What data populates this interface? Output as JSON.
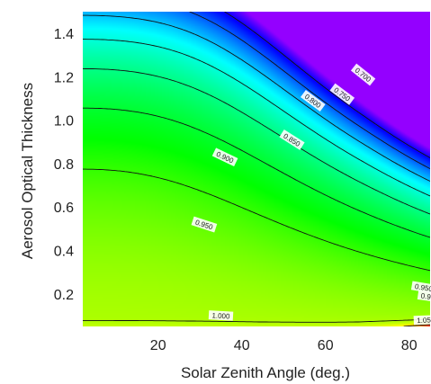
{
  "chart_data": {
    "type": "heatmap",
    "title": "",
    "xlabel": "Solar  Zenith  Angle  (deg.)",
    "ylabel": "Aerosol Optical Thickness",
    "xlim": [
      2,
      85
    ],
    "ylim": [
      0.05,
      1.5
    ],
    "x_ticks": [
      20,
      40,
      60,
      80
    ],
    "y_ticks": [
      0.2,
      0.4,
      0.6,
      0.8,
      1.0,
      1.2,
      1.4
    ],
    "x_tick_labels": [
      "20",
      "40",
      "60",
      "80"
    ],
    "y_tick_labels": [
      "0.2",
      "0.4",
      "0.6",
      "0.8",
      "1.0",
      "1.2",
      "1.4"
    ],
    "colorscale": [
      "#ff1a00",
      "#ffff00",
      "#00ff00",
      "#00ffff",
      "#0000ff",
      "#9400ff"
    ],
    "value_range": [
      0.6,
      1.07
    ],
    "grid": false,
    "legend": "none",
    "contour_levels": [
      1.05,
      1.0,
      0.95,
      0.9,
      0.85,
      0.8,
      0.75,
      0.7,
      0.65
    ],
    "contour_labels": [
      {
        "text": "1.000",
        "x": 35,
        "y": 0.1
      },
      {
        "text": "0.950",
        "x": 31,
        "y": 0.52
      },
      {
        "text": "0.900",
        "x": 36,
        "y": 0.83
      },
      {
        "text": "0.850",
        "x": 52,
        "y": 0.91
      },
      {
        "text": "0.800",
        "x": 57,
        "y": 1.09
      },
      {
        "text": "0.750",
        "x": 64,
        "y": 1.12
      },
      {
        "text": "0.700",
        "x": 69,
        "y": 1.21
      },
      {
        "text": "0.950",
        "x": 83.5,
        "y": 0.23
      },
      {
        "text": "0.9",
        "x": 84,
        "y": 0.19
      },
      {
        "text": "1.05",
        "x": 83.5,
        "y": 0.08
      }
    ]
  }
}
